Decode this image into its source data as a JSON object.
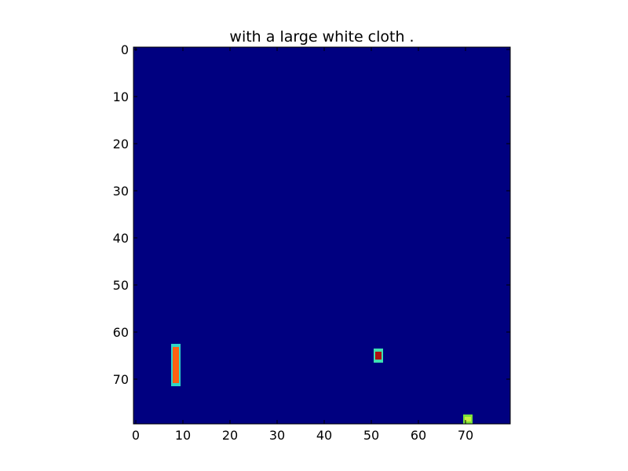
{
  "chart_data": {
    "type": "heatmap",
    "title": "with a large white cloth .",
    "xlabel": "",
    "ylabel": "",
    "grid": false,
    "legend": "none",
    "xlim": [
      0,
      80
    ],
    "ylim": [
      80,
      0
    ],
    "x_ticks": [
      "0",
      "10",
      "20",
      "30",
      "40",
      "50",
      "60",
      "70"
    ],
    "y_ticks": [
      "0",
      "10",
      "20",
      "30",
      "40",
      "50",
      "60",
      "70"
    ],
    "colormap": "jet",
    "background_value": 0.0,
    "background_color": "#000080",
    "regions": [
      {
        "label": "vertical bar",
        "x_range": [
          8,
          9
        ],
        "y_range": [
          63,
          71
        ],
        "edge_color": "#2fd6c8",
        "core_color": "#ff6010",
        "core_value": 0.85,
        "edge_value": 0.4
      },
      {
        "label": "small stacked segments",
        "x_range": [
          51,
          52
        ],
        "y_range": [
          64,
          66
        ],
        "edge_color": "#3fe0b0",
        "core_color": "#b01010",
        "core_value": 0.95,
        "edge_value": 0.45
      },
      {
        "label": "bottom corner spot",
        "x_range": [
          70,
          71
        ],
        "y_range": [
          78,
          79
        ],
        "edge_color": "#7adf3a",
        "core_color": "#c8f040",
        "core_value": 0.6,
        "edge_value": 0.55
      }
    ]
  }
}
